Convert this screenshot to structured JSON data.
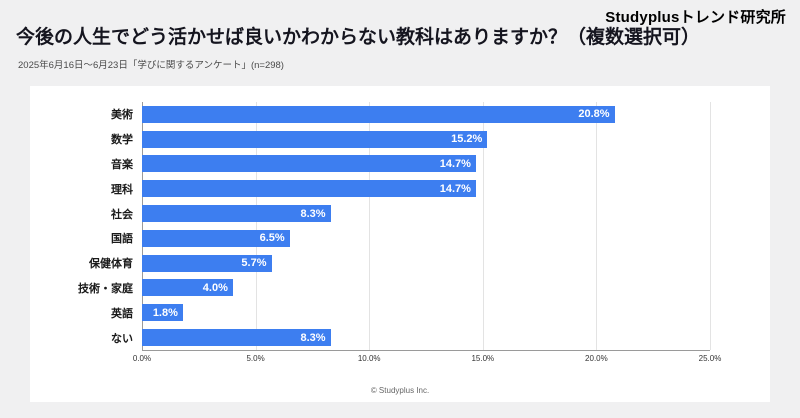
{
  "header": {
    "brand": "Studyplusトレンド研究所",
    "title": "今後の人生でどう活かせば良いかわからない教科はありますか？（複数選択可）",
    "subtitle": "2025年6月16日～6月23日「学びに関するアンケート」(n=298)"
  },
  "chart_data": {
    "type": "bar",
    "orientation": "horizontal",
    "title": "今後の人生でどう活かせば良いかわからない教科はありますか？（複数選択可）",
    "categories": [
      "美術",
      "数学",
      "音楽",
      "理科",
      "社会",
      "国語",
      "保健体育",
      "技術・家庭",
      "英語",
      "ない"
    ],
    "values": [
      20.8,
      15.2,
      14.7,
      14.7,
      8.3,
      6.5,
      5.7,
      4.0,
      1.8,
      8.3
    ],
    "value_labels": [
      "20.8%",
      "15.2%",
      "14.7%",
      "14.7%",
      "8.3%",
      "6.5%",
      "5.7%",
      "4.0%",
      "1.8%",
      "8.3%"
    ],
    "x_ticks": [
      "0.0%",
      "5.0%",
      "10.0%",
      "15.0%",
      "20.0%",
      "25.0%"
    ],
    "xlim": [
      0,
      25
    ],
    "bar_color": "#3d7ef0",
    "grid": true,
    "legend": false
  },
  "footer": {
    "copyright": "© Studyplus Inc."
  }
}
